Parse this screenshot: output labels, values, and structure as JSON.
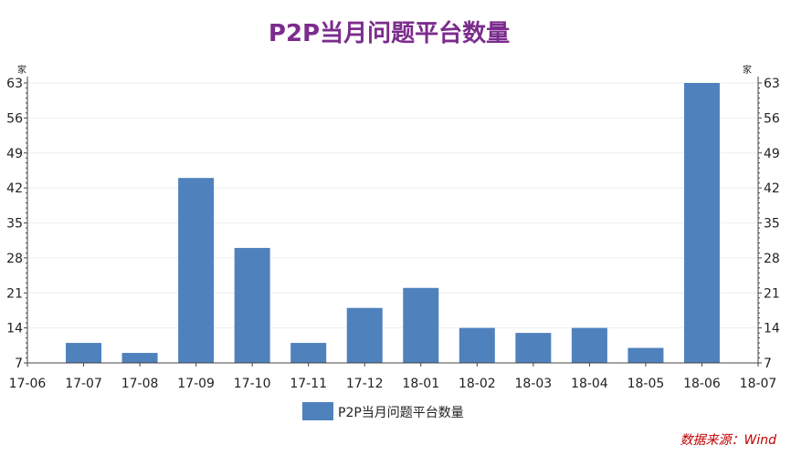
{
  "chart_data": {
    "type": "bar",
    "title": "P2P当月问题平台数量",
    "categories": [
      "17-06",
      "17-07",
      "17-08",
      "17-09",
      "17-10",
      "17-11",
      "17-12",
      "18-01",
      "18-02",
      "18-03",
      "18-04",
      "18-05",
      "18-06",
      "18-07"
    ],
    "series": [
      {
        "name": "P2P当月问题平台数量",
        "values": [
          null,
          11,
          9,
          44,
          30,
          11,
          18,
          22,
          14,
          13,
          14,
          10,
          63,
          null
        ]
      }
    ],
    "y_ticks": [
      7,
      14,
      21,
      28,
      35,
      42,
      49,
      56,
      63
    ],
    "ylim": [
      7,
      63
    ],
    "y_unit_left": "家",
    "y_unit_right": "家",
    "grid": true,
    "legend_position": "bottom",
    "source": "数据来源：Wind",
    "colors": {
      "bar": "#4F81BD",
      "title": "#7B2C8C",
      "source": "#C00000",
      "grid": "#EEEEEE",
      "axis": "#444444"
    }
  }
}
